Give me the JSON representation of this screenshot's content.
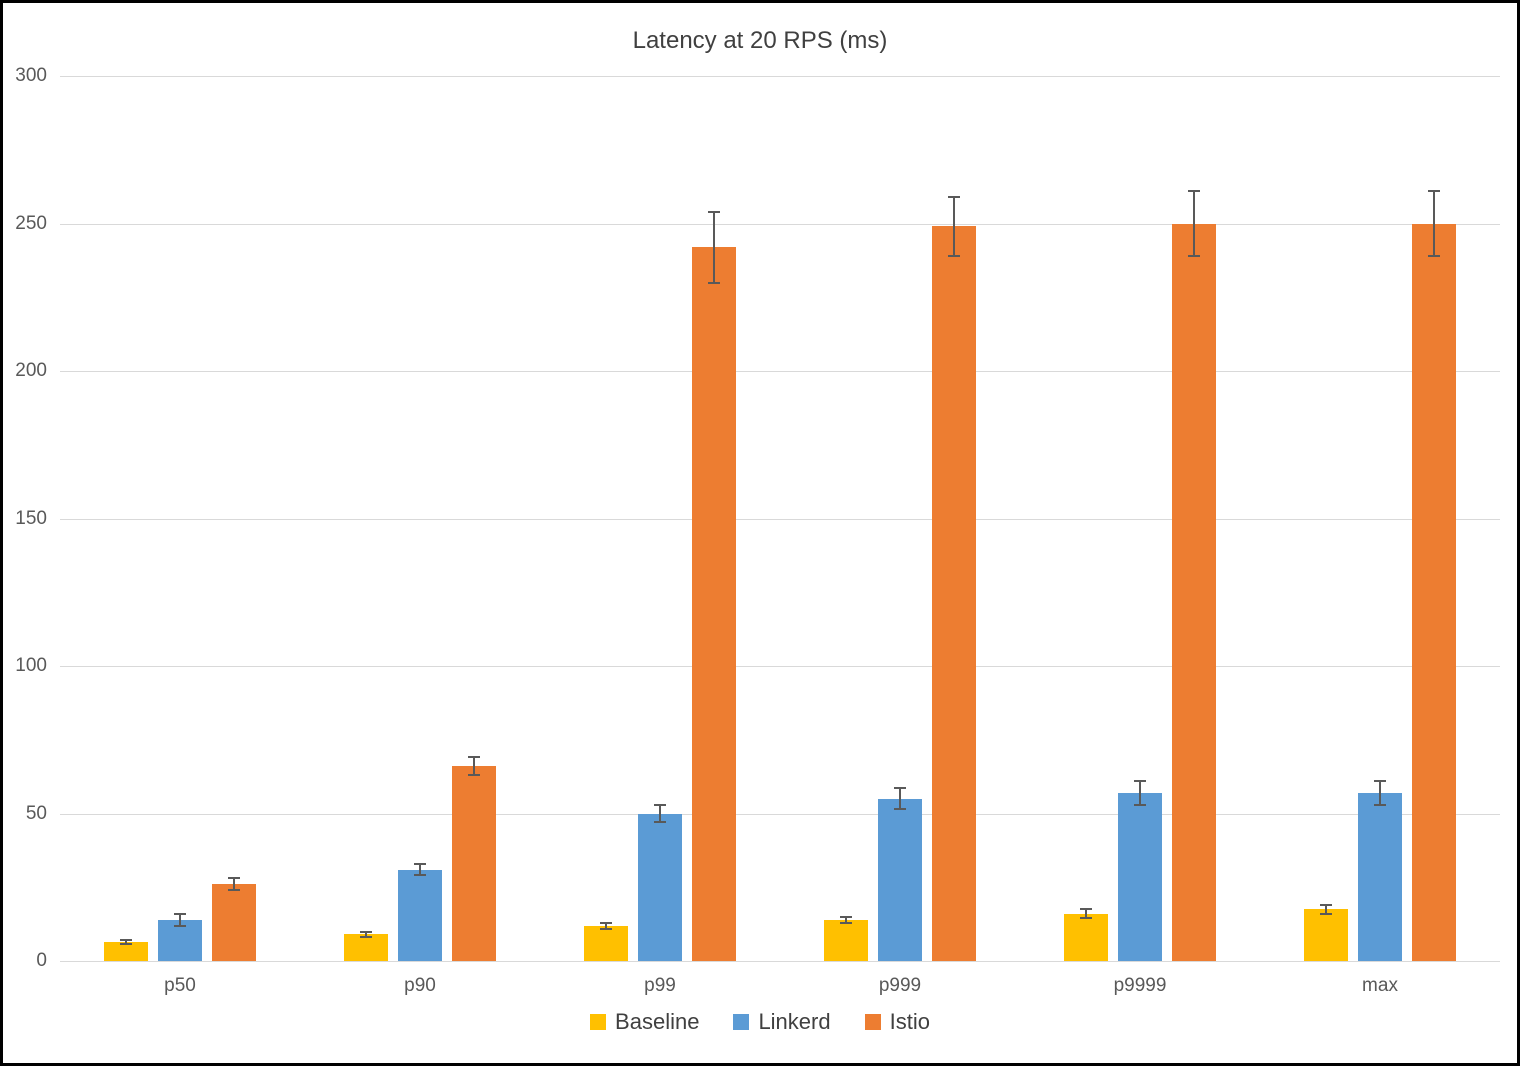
{
  "chart_data": {
    "type": "bar",
    "title": "Latency at 20 RPS (ms)",
    "xlabel": "",
    "ylabel": "",
    "categories": [
      "p50",
      "p90",
      "p99",
      "p999",
      "p9999",
      "max"
    ],
    "series": [
      {
        "name": "Baseline",
        "color": "#FFC000",
        "values": [
          6.5,
          9,
          12,
          14,
          16,
          17.5
        ],
        "errors": [
          0.7,
          0.7,
          1,
          1,
          1.5,
          1.5
        ]
      },
      {
        "name": "Linkerd",
        "color": "#5B9BD5",
        "values": [
          14,
          31,
          50,
          55,
          57,
          57
        ],
        "errors": [
          2,
          2,
          3,
          3.5,
          4,
          4
        ]
      },
      {
        "name": "Istio",
        "color": "#ED7D31",
        "values": [
          26,
          66,
          242,
          249,
          250,
          250
        ],
        "errors": [
          2,
          3,
          12,
          10,
          11,
          11
        ]
      }
    ],
    "ylim": [
      0,
      300
    ],
    "yticks": [
      0,
      50,
      100,
      150,
      200,
      250,
      300
    ],
    "grid": true,
    "error_bars": true,
    "legend_position": "bottom"
  },
  "theme": {
    "grid_color": "#D9D9D9",
    "axis_text_color": "#595959",
    "title_text_color": "#404040",
    "error_bar_color": "#595959",
    "frame_border_color": "#000000",
    "background_color": "#FFFFFF"
  }
}
